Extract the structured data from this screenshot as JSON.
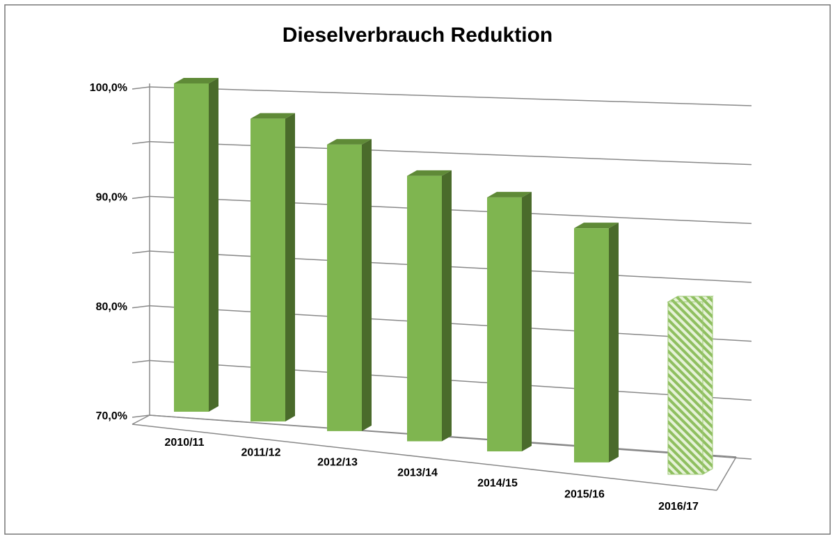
{
  "chart_data": {
    "type": "bar3d",
    "title": "Dieselverbrauch Reduktion",
    "categories": [
      "2010/11",
      "2011/12",
      "2012/13",
      "2013/14",
      "2014/15",
      "2015/16",
      "2016/17"
    ],
    "values": [
      100,
      97.3,
      95.5,
      93.3,
      92,
      90,
      84.5
    ],
    "color": "#7fb550",
    "hatched": [
      false,
      false,
      false,
      false,
      false,
      false,
      true
    ],
    "ylim": [
      70,
      100
    ],
    "yticks": [
      {
        "value": 70,
        "label": "70,0%"
      },
      {
        "value": 75,
        "label": null
      },
      {
        "value": 80,
        "label": "80,0%"
      },
      {
        "value": 85,
        "label": null
      },
      {
        "value": 90,
        "label": "90,0%"
      },
      {
        "value": 95,
        "label": null
      },
      {
        "value": 100,
        "label": "100,0%"
      }
    ],
    "grid": true
  }
}
